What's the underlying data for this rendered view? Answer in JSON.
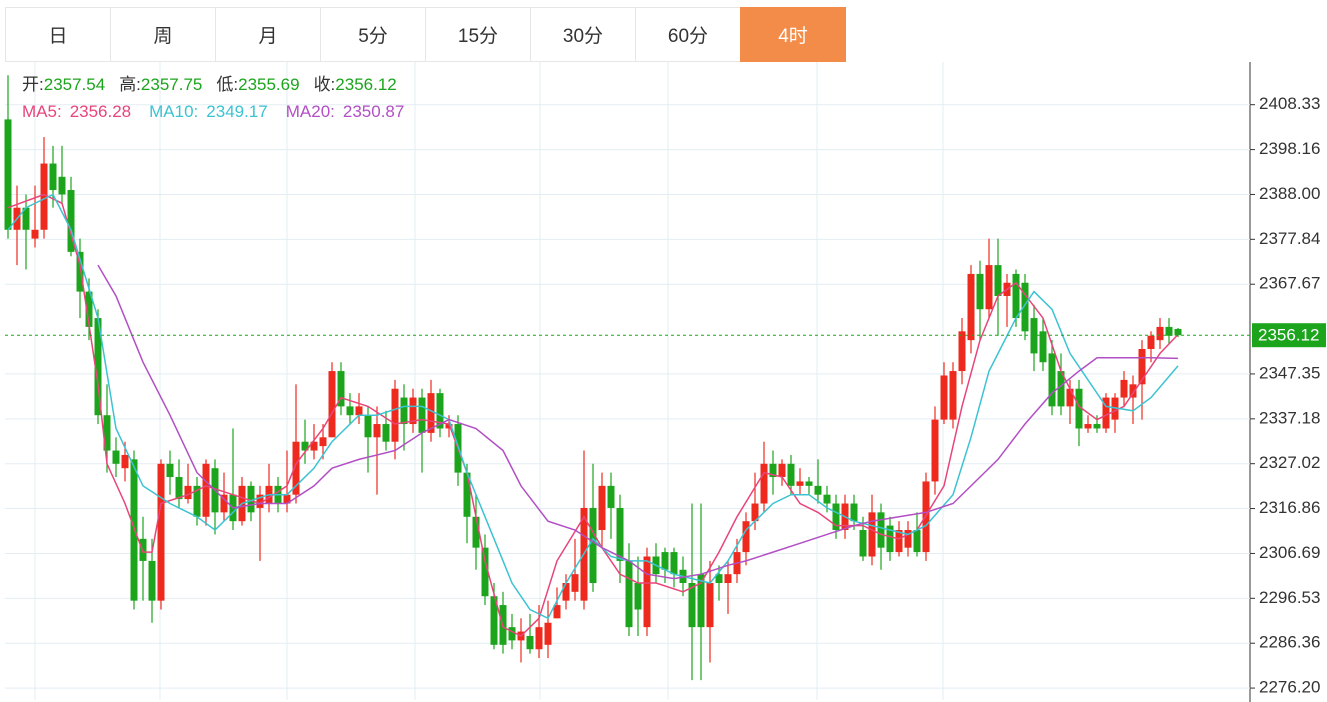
{
  "tabs": [
    "日",
    "周",
    "月",
    "5分",
    "15分",
    "30分",
    "60分",
    "4时"
  ],
  "active_tab": 7,
  "chart_data": {
    "type": "candlestick",
    "ohlc_labels": [
      "开:",
      "高:",
      "低:",
      "收:"
    ],
    "up_color": "#ee2a1e",
    "down_color": "#1ca51c",
    "ylim": [
      2273.5,
      2418
    ],
    "yticks": [
      {
        "value": 2276.2,
        "label": "2276.20"
      },
      {
        "value": 2286.36,
        "label": "2286.36"
      },
      {
        "value": 2296.53,
        "label": "2296.53"
      },
      {
        "value": 2306.69,
        "label": "2306.69"
      },
      {
        "value": 2316.86,
        "label": "2316.86"
      },
      {
        "value": 2327.02,
        "label": "2327.02"
      },
      {
        "value": 2337.18,
        "label": "2337.18"
      },
      {
        "value": 2347.35,
        "label": "2347.35"
      },
      {
        "value": 2367.67,
        "label": "2367.67"
      },
      {
        "value": 2377.84,
        "label": "2377.84"
      },
      {
        "value": 2388,
        "label": "2388.00"
      },
      {
        "value": 2398.16,
        "label": "2398.16"
      },
      {
        "value": 2408.33,
        "label": "2408.33"
      }
    ],
    "grid": true,
    "ohlc": [
      [
        2405,
        2415,
        2378,
        2380
      ],
      [
        2380,
        2390,
        2372,
        2385
      ],
      [
        2385,
        2388,
        2371,
        2380
      ],
      [
        2378,
        2390,
        2376,
        2380
      ],
      [
        2380,
        2401,
        2378,
        2395
      ],
      [
        2395,
        2399,
        2385,
        2389
      ],
      [
        2392,
        2399,
        2386,
        2388
      ],
      [
        2389,
        2392,
        2374,
        2375
      ],
      [
        2375,
        2378,
        2360,
        2366
      ],
      [
        2366,
        2369,
        2355,
        2358
      ],
      [
        2360,
        2362,
        2336,
        2338
      ],
      [
        2338,
        2345,
        2325,
        2330
      ],
      [
        2330,
        2333,
        2324,
        2327
      ],
      [
        2326,
        2332,
        2323,
        2329
      ],
      [
        2328,
        2330,
        2294,
        2296
      ],
      [
        2310,
        2315,
        2296,
        2305
      ],
      [
        2305,
        2310,
        2291,
        2296
      ],
      [
        2296,
        2328,
        2294,
        2327
      ],
      [
        2327,
        2330,
        2320,
        2324
      ],
      [
        2324,
        2328,
        2317,
        2319
      ],
      [
        2319,
        2327,
        2318,
        2322
      ],
      [
        2322,
        2324,
        2313,
        2315
      ],
      [
        2315,
        2328,
        2313,
        2327
      ],
      [
        2326,
        2328,
        2311,
        2316
      ],
      [
        2316,
        2325,
        2314,
        2320
      ],
      [
        2320,
        2335,
        2312,
        2314
      ],
      [
        2314,
        2324,
        2313,
        2322
      ],
      [
        2322,
        2323,
        2314,
        2316
      ],
      [
        2317,
        2322,
        2305,
        2320
      ],
      [
        2318,
        2327,
        2316,
        2322
      ],
      [
        2322,
        2324,
        2316,
        2318
      ],
      [
        2318,
        2330,
        2316,
        2320
      ],
      [
        2320,
        2345,
        2318,
        2332
      ],
      [
        2332,
        2337,
        2327,
        2330
      ],
      [
        2330,
        2336,
        2328,
        2332
      ],
      [
        2331,
        2336,
        2328,
        2333
      ],
      [
        2333,
        2350,
        2333,
        2348
      ],
      [
        2348,
        2350,
        2338,
        2340
      ],
      [
        2340,
        2343,
        2336,
        2338
      ],
      [
        2338,
        2343,
        2336,
        2340
      ],
      [
        2338,
        2340,
        2325,
        2333
      ],
      [
        2333,
        2340,
        2320,
        2336
      ],
      [
        2336,
        2339,
        2330,
        2332
      ],
      [
        2332,
        2346,
        2328,
        2344
      ],
      [
        2342,
        2345,
        2330,
        2336
      ],
      [
        2336,
        2344,
        2334,
        2342
      ],
      [
        2342,
        2344,
        2325,
        2334
      ],
      [
        2334,
        2346,
        2332,
        2343
      ],
      [
        2343,
        2344,
        2333,
        2335
      ],
      [
        2335,
        2338,
        2333,
        2336
      ],
      [
        2336,
        2338,
        2322,
        2325
      ],
      [
        2325,
        2327,
        2309,
        2315
      ],
      [
        2315,
        2320,
        2303,
        2308
      ],
      [
        2308,
        2311,
        2295,
        2297
      ],
      [
        2297,
        2300,
        2285,
        2286
      ],
      [
        2295,
        2298,
        2284,
        2286
      ],
      [
        2290,
        2293,
        2285,
        2287
      ],
      [
        2287,
        2292,
        2282,
        2289
      ],
      [
        2288,
        2293,
        2284,
        2285
      ],
      [
        2285,
        2295,
        2283,
        2290
      ],
      [
        2286,
        2296,
        2283,
        2291
      ],
      [
        2292,
        2299,
        2292,
        2295
      ],
      [
        2296,
        2302,
        2294,
        2300
      ],
      [
        2298,
        2310,
        2296,
        2302
      ],
      [
        2296,
        2330,
        2294,
        2317
      ],
      [
        2317,
        2327,
        2298,
        2300
      ],
      [
        2312,
        2325,
        2308,
        2322
      ],
      [
        2322,
        2325,
        2310,
        2317
      ],
      [
        2317,
        2320,
        2300,
        2305
      ],
      [
        2305,
        2309,
        2288,
        2290
      ],
      [
        2300,
        2306,
        2288,
        2294
      ],
      [
        2290,
        2308,
        2288,
        2306
      ],
      [
        2306,
        2309,
        2300,
        2302
      ],
      [
        2307,
        2308,
        2300,
        2303
      ],
      [
        2307,
        2308,
        2299,
        2302
      ],
      [
        2303,
        2306,
        2297,
        2300
      ],
      [
        2300,
        2318,
        2278,
        2290
      ],
      [
        2302,
        2318,
        2278,
        2290
      ],
      [
        2290,
        2305,
        2282,
        2300
      ],
      [
        2302,
        2304,
        2296,
        2300
      ],
      [
        2300,
        2305,
        2293,
        2302
      ],
      [
        2302,
        2310,
        2300,
        2307
      ],
      [
        2307,
        2316,
        2304,
        2314
      ],
      [
        2314,
        2325,
        2312,
        2318
      ],
      [
        2318,
        2332,
        2316,
        2327
      ],
      [
        2327,
        2330,
        2320,
        2324
      ],
      [
        2324,
        2328,
        2322,
        2327
      ],
      [
        2327,
        2329,
        2320,
        2322
      ],
      [
        2322,
        2326,
        2320,
        2323
      ],
      [
        2323,
        2324,
        2320,
        2322
      ],
      [
        2322,
        2328,
        2318,
        2320
      ],
      [
        2320,
        2322,
        2316,
        2318
      ],
      [
        2318,
        2320,
        2310,
        2312
      ],
      [
        2312,
        2320,
        2310,
        2318
      ],
      [
        2318,
        2320,
        2312,
        2314
      ],
      [
        2312,
        2315,
        2305,
        2306
      ],
      [
        2306,
        2320,
        2304,
        2316
      ],
      [
        2316,
        2318,
        2303,
        2308
      ],
      [
        2313,
        2315,
        2305,
        2307
      ],
      [
        2307,
        2314,
        2306,
        2312
      ],
      [
        2308,
        2314,
        2306,
        2312
      ],
      [
        2312,
        2316,
        2306,
        2307
      ],
      [
        2307,
        2325,
        2305,
        2323
      ],
      [
        2323,
        2340,
        2320,
        2337
      ],
      [
        2337,
        2350,
        2336,
        2347
      ],
      [
        2337,
        2350,
        2335,
        2348
      ],
      [
        2348,
        2360,
        2345,
        2357
      ],
      [
        2355,
        2372,
        2352,
        2370
      ],
      [
        2370,
        2373,
        2355,
        2362
      ],
      [
        2362,
        2378,
        2360,
        2372
      ],
      [
        2372,
        2378,
        2356,
        2365
      ],
      [
        2365,
        2370,
        2358,
        2368
      ],
      [
        2370,
        2371,
        2358,
        2360
      ],
      [
        2368,
        2370,
        2355,
        2357
      ],
      [
        2360,
        2363,
        2348,
        2352
      ],
      [
        2357,
        2360,
        2348,
        2350
      ],
      [
        2352,
        2355,
        2338,
        2340
      ],
      [
        2348,
        2352,
        2338,
        2340
      ],
      [
        2340,
        2346,
        2336,
        2344
      ],
      [
        2344,
        2346,
        2331,
        2335
      ],
      [
        2335,
        2338,
        2334,
        2336
      ],
      [
        2336,
        2338,
        2334,
        2335
      ],
      [
        2335,
        2343,
        2334,
        2342
      ],
      [
        2337,
        2343,
        2334,
        2342
      ],
      [
        2342,
        2348,
        2340,
        2346
      ],
      [
        2342,
        2347,
        2336,
        2345
      ],
      [
        2345,
        2355,
        2337,
        2353
      ],
      [
        2353,
        2357,
        2350,
        2356
      ],
      [
        2355,
        2360,
        2353,
        2358
      ],
      [
        2358,
        2360,
        2354,
        2356
      ],
      [
        2357.54,
        2357.75,
        2355.69,
        2356.12
      ]
    ],
    "series": [
      {
        "name": "MA5:",
        "color": "#e8457a",
        "x": [
          0,
          4,
          6,
          8,
          10,
          11,
          13,
          15,
          16,
          17,
          20,
          22,
          25,
          28,
          31,
          32,
          35,
          37,
          40,
          43,
          46,
          49,
          51,
          53,
          55,
          57,
          59,
          61,
          64,
          66,
          68,
          70,
          72,
          75,
          77,
          79,
          81,
          84,
          86,
          88,
          90,
          92,
          95,
          97,
          99,
          101,
          104,
          106,
          108,
          110,
          112,
          115,
          117,
          119,
          121,
          124,
          126,
          128,
          130
        ],
        "values": [
          2385,
          2388,
          2386,
          2372,
          2345,
          2327,
          2318,
          2307,
          2307,
          2318,
          2320,
          2322,
          2320,
          2318,
          2322,
          2327,
          2335,
          2342,
          2340,
          2336,
          2337,
          2336,
          2325,
          2305,
          2290,
          2288,
          2292,
          2305,
          2315,
          2308,
          2302,
          2300,
          2300,
          2298,
          2300,
          2307,
          2315,
          2325,
          2324,
          2318,
          2316,
          2313,
          2313,
          2311,
          2310,
          2312,
          2322,
          2340,
          2355,
          2365,
          2368,
          2360,
          2348,
          2340,
          2337,
          2340,
          2346,
          2352,
          2356.28
        ]
      },
      {
        "name": "MA10:",
        "color": "#3cc3d2",
        "x": [
          0,
          2,
          5,
          7,
          10,
          12,
          15,
          18,
          21,
          23,
          26,
          29,
          31,
          34,
          36,
          39,
          41,
          44,
          46,
          49,
          51,
          54,
          56,
          58,
          60,
          62,
          65,
          67,
          69,
          71,
          74,
          76,
          78,
          80,
          82,
          85,
          87,
          89,
          91,
          94,
          96,
          98,
          100,
          102,
          105,
          107,
          109,
          112,
          114,
          116,
          118,
          120,
          122,
          125,
          127,
          130
        ],
        "values": [
          2380,
          2385,
          2388,
          2380,
          2360,
          2335,
          2322,
          2318,
          2315,
          2312,
          2318,
          2320,
          2320,
          2326,
          2332,
          2338,
          2338,
          2340,
          2340,
          2337,
          2325,
          2310,
          2300,
          2294,
          2292,
          2300,
          2310,
          2306,
          2305,
          2305,
          2302,
          2301,
          2300,
          2305,
          2312,
          2318,
          2320,
          2320,
          2317,
          2314,
          2313,
          2312,
          2311,
          2313,
          2320,
          2333,
          2348,
          2360,
          2366,
          2362,
          2352,
          2346,
          2340,
          2339,
          2342,
          2349.17
        ]
      },
      {
        "name": "MA20:",
        "color": "#b24fc4",
        "x": [
          10,
          12,
          15,
          18,
          21,
          25,
          28,
          31,
          34,
          36,
          39,
          43,
          46,
          49,
          52,
          55,
          57,
          60,
          63,
          66,
          69,
          71,
          74,
          77,
          80,
          82,
          85,
          88,
          91,
          94,
          96,
          99,
          102,
          105,
          107,
          110,
          113,
          116,
          119,
          121,
          124,
          127,
          130
        ],
        "values": [
          2372,
          2365,
          2350,
          2338,
          2325,
          2317,
          2318,
          2318,
          2322,
          2326,
          2328,
          2330,
          2334,
          2337,
          2335,
          2330,
          2322,
          2314,
          2312,
          2308,
          2305,
          2302,
          2301,
          2302,
          2304,
          2305,
          2307,
          2309,
          2311,
          2313,
          2314,
          2315,
          2316,
          2318,
          2322,
          2328,
          2336,
          2343,
          2348,
          2351,
          2351,
          2351,
          2350.87
        ]
      }
    ]
  }
}
